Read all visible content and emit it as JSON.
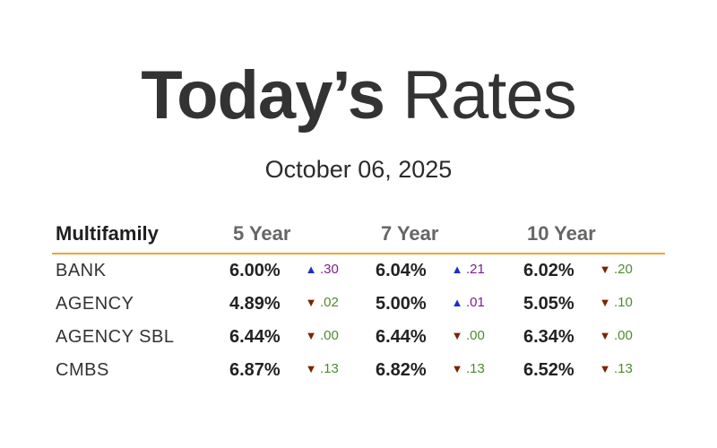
{
  "header": {
    "title_bold": "Today’s",
    "title_light": "Rates",
    "date": "October 06, 2025"
  },
  "table": {
    "label_header": "Multifamily",
    "columns": [
      "5 Year",
      "7 Year",
      "10 Year"
    ],
    "rows": [
      {
        "label": "BANK",
        "cells": [
          {
            "rate": "6.00%",
            "dir": "up",
            "arrow": "▲",
            "change": ".30"
          },
          {
            "rate": "6.04%",
            "dir": "up",
            "arrow": "▲",
            "change": ".21"
          },
          {
            "rate": "6.02%",
            "dir": "down",
            "arrow": "▼",
            "change": ".20"
          }
        ]
      },
      {
        "label": "AGENCY",
        "cells": [
          {
            "rate": "4.89%",
            "dir": "down",
            "arrow": "▼",
            "change": ".02"
          },
          {
            "rate": "5.00%",
            "dir": "up",
            "arrow": "▲",
            "change": ".01"
          },
          {
            "rate": "5.05%",
            "dir": "down",
            "arrow": "▼",
            "change": ".10"
          }
        ]
      },
      {
        "label": "AGENCY SBL",
        "cells": [
          {
            "rate": "6.44%",
            "dir": "down",
            "arrow": "▼",
            "change": ".00"
          },
          {
            "rate": "6.44%",
            "dir": "down",
            "arrow": "▼",
            "change": ".00"
          },
          {
            "rate": "6.34%",
            "dir": "down",
            "arrow": "▼",
            "change": ".00"
          }
        ]
      },
      {
        "label": "CMBS",
        "cells": [
          {
            "rate": "6.87%",
            "dir": "down",
            "arrow": "▼",
            "change": ".13"
          },
          {
            "rate": "6.82%",
            "dir": "down",
            "arrow": "▼",
            "change": ".13"
          },
          {
            "rate": "6.52%",
            "dir": "down",
            "arrow": "▼",
            "change": ".13"
          }
        ]
      }
    ]
  },
  "colors": {
    "accent_rule": "#f0a534",
    "up_arrow": "#1a2fd0",
    "down_arrow": "#7a2400",
    "up_text": "#7a1f8e",
    "down_text": "#4e8a2c"
  },
  "icons": {
    "up": "triangle-up-icon",
    "down": "triangle-down-icon"
  }
}
